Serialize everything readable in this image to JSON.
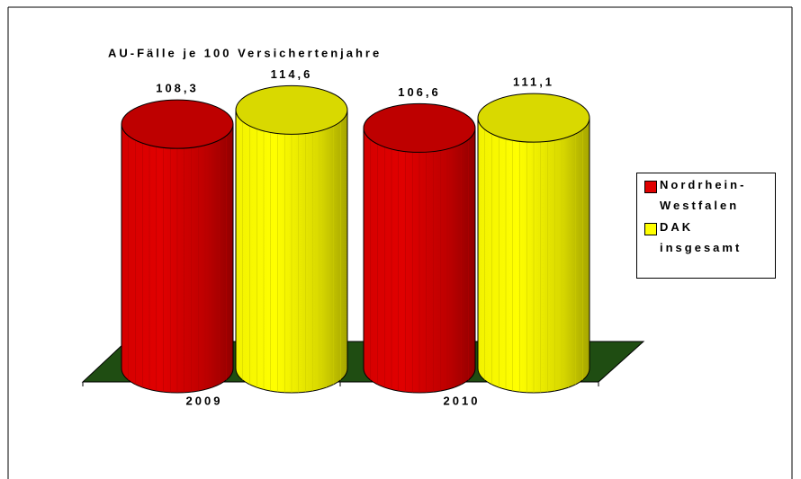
{
  "chart_data": {
    "type": "bar3d-cylinder",
    "title": "AU-Fälle je 100 Versichertenjahre",
    "categories": [
      "2009",
      "2010"
    ],
    "series": [
      {
        "name": "Nordrhein-Westfalen",
        "color": "#e00000",
        "values": [
          108.3,
          106.6
        ],
        "value_labels": [
          "108,3",
          "106,6"
        ]
      },
      {
        "name": "DAK insgesamt",
        "color": "#ffff00",
        "values": [
          114.6,
          111.1
        ],
        "value_labels": [
          "114,6",
          "111,1"
        ]
      }
    ],
    "ylim": [
      0,
      120
    ],
    "legend": "right"
  }
}
